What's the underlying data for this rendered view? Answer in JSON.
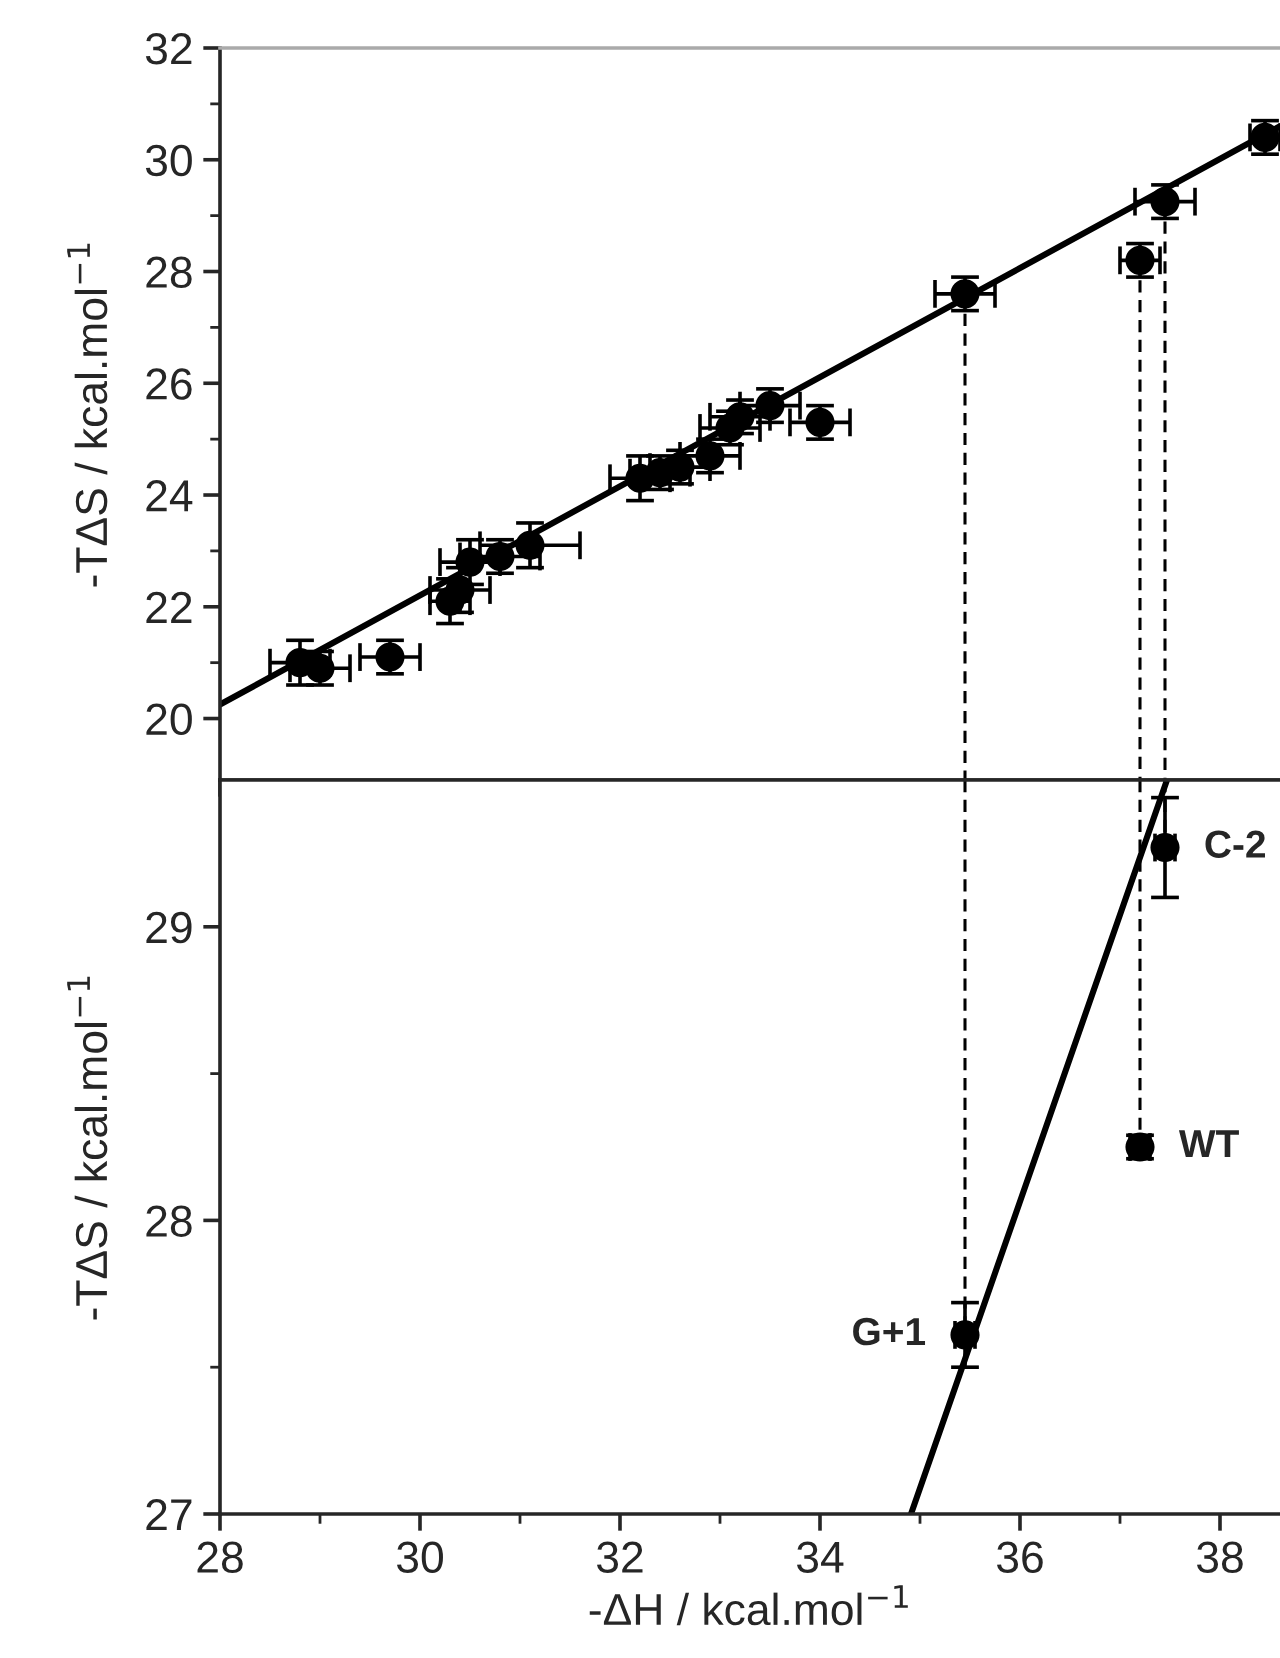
{
  "chart_data": [
    {
      "type": "scatter",
      "ylabel": "-TΔS / kcal.mol$^{−1}$",
      "grid": false,
      "tick_labels": "y",
      "xlim": [
        28,
        38.6
      ],
      "ylim": [
        18.9,
        32
      ],
      "xticks": [
        28,
        {
          "value": 29,
          "label": null
        },
        30,
        {
          "value": 31,
          "label": null
        },
        32,
        {
          "value": 33,
          "label": null
        },
        34,
        {
          "value": 35,
          "label": null
        },
        36,
        {
          "value": 37,
          "label": null
        },
        38
      ],
      "yticks": [
        20,
        {
          "value": 21,
          "label": null
        },
        22,
        {
          "value": 23,
          "label": null
        },
        24,
        {
          "value": 25,
          "label": null
        },
        26,
        {
          "value": 27,
          "label": null
        },
        28,
        {
          "value": 29,
          "label": null
        },
        30,
        {
          "value": 31,
          "label": null
        },
        32
      ],
      "series": [
        {
          "type": "line",
          "color": "#000000",
          "line_style": "solid",
          "x": [
            28,
            38.6
          ],
          "values": [
            20.25,
            30.6
          ]
        },
        {
          "type": "line",
          "color": "#000000",
          "line_style": "dashed",
          "x": [
            35.45,
            35.45
          ],
          "values": [
            27.6,
            18.9
          ]
        },
        {
          "type": "line",
          "color": "#000000",
          "line_style": "dashed",
          "x": [
            37.2,
            37.2
          ],
          "values": [
            28.2,
            18.9
          ]
        },
        {
          "type": "line",
          "color": "#000000",
          "line_style": "dashed",
          "x": [
            37.45,
            37.45
          ],
          "values": [
            29.25,
            18.9
          ]
        },
        {
          "marker": "circle",
          "color": "#000000",
          "x": [
            28.8,
            29.0,
            29.7,
            30.3,
            30.4,
            30.5,
            30.8,
            31.1,
            32.2,
            32.4,
            32.6,
            32.9,
            33.1,
            33.2,
            33.5,
            34.0,
            35.45,
            37.2,
            37.45,
            38.45
          ],
          "values": [
            21.0,
            20.9,
            21.1,
            22.1,
            22.3,
            22.8,
            22.9,
            23.1,
            24.3,
            24.4,
            24.5,
            24.7,
            25.2,
            25.4,
            25.6,
            25.3,
            27.6,
            28.2,
            29.25,
            30.4
          ],
          "errors": [
            0.4,
            0.3,
            0.3,
            0.4,
            0.4,
            0.4,
            0.3,
            0.4,
            0.4,
            0.3,
            0.3,
            0.3,
            0.3,
            0.3,
            0.3,
            0.3,
            0.3,
            0.3,
            0.3,
            0.3
          ],
          "xerrors": [
            0.3,
            0.3,
            0.3,
            0.2,
            0.3,
            0.3,
            0.4,
            0.5,
            0.3,
            0.3,
            0.3,
            0.3,
            0.3,
            0.3,
            0.3,
            0.3,
            0.3,
            0.2,
            0.3,
            0.15
          ]
        }
      ]
    },
    {
      "type": "scatter",
      "xlabel": "-ΔH / kcal.mol$^{−1}$",
      "ylabel": "-TΔS / kcal.mol$^{−1}$",
      "grid": false,
      "xlim": [
        28,
        38.6
      ],
      "ylim": [
        27,
        29.5
      ],
      "xticks": [
        28,
        {
          "value": 29,
          "label": null
        },
        30,
        {
          "value": 31,
          "label": null
        },
        32,
        {
          "value": 33,
          "label": null
        },
        34,
        {
          "value": 35,
          "label": null
        },
        36,
        {
          "value": 37,
          "label": null
        },
        38
      ],
      "yticks": [
        27,
        {
          "value": 27.5,
          "label": null
        },
        28,
        {
          "value": 28.5,
          "label": null
        },
        29
      ],
      "annotations": [
        {
          "text": "C-2",
          "x": 37.45,
          "y": 29.27
        },
        {
          "text": "WT",
          "x": 37.2,
          "y": 28.25
        },
        {
          "text": "G+1",
          "x": 35.45,
          "y": 27.61
        }
      ],
      "series": [
        {
          "type": "line",
          "color": "#000000",
          "line_style": "solid",
          "x": [
            34.91,
            37.47
          ],
          "values": [
            27.0,
            29.5
          ]
        },
        {
          "type": "line",
          "color": "#000000",
          "line_style": "dashed",
          "x": [
            35.45,
            35.45
          ],
          "values": [
            29.5,
            27.61
          ]
        },
        {
          "type": "line",
          "color": "#000000",
          "line_style": "dashed",
          "x": [
            37.2,
            37.2
          ],
          "values": [
            29.5,
            28.25
          ]
        },
        {
          "type": "line",
          "color": "#000000",
          "line_style": "dashed",
          "x": [
            37.45,
            37.45
          ],
          "values": [
            29.5,
            29.27
          ]
        },
        {
          "marker": "circle",
          "color": "#000000",
          "x": [
            35.45,
            37.2,
            37.45
          ],
          "values": [
            27.61,
            28.25,
            29.27
          ],
          "errors": [
            0.11,
            0.04,
            0.17
          ],
          "xerrors": [
            0.1,
            0.1,
            0.1
          ]
        }
      ]
    }
  ]
}
